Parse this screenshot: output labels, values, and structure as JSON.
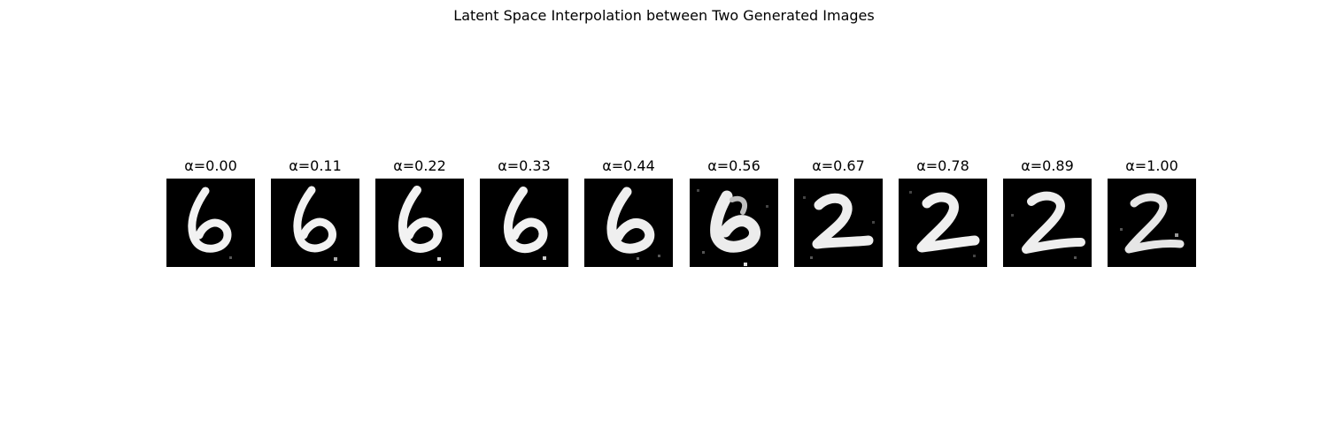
{
  "title": "Latent Space Interpolation between Two Generated Images",
  "panels": [
    {
      "label": "α=0.00",
      "alpha": 0.0,
      "depicts": "6"
    },
    {
      "label": "α=0.11",
      "alpha": 0.11,
      "depicts": "6"
    },
    {
      "label": "α=0.22",
      "alpha": 0.22,
      "depicts": "6"
    },
    {
      "label": "α=0.33",
      "alpha": 0.33,
      "depicts": "6"
    },
    {
      "label": "α=0.44",
      "alpha": 0.44,
      "depicts": "6"
    },
    {
      "label": "α=0.56",
      "alpha": 0.56,
      "depicts": "6-2"
    },
    {
      "label": "α=0.67",
      "alpha": 0.67,
      "depicts": "2"
    },
    {
      "label": "α=0.78",
      "alpha": 0.78,
      "depicts": "2"
    },
    {
      "label": "α=0.89",
      "alpha": 0.89,
      "depicts": "2"
    },
    {
      "label": "α=1.00",
      "alpha": 1.0,
      "depicts": "2"
    }
  ],
  "colors": {
    "background": "#ffffff",
    "image_background": "#000000",
    "digit_stroke": "#f2f2f2"
  }
}
